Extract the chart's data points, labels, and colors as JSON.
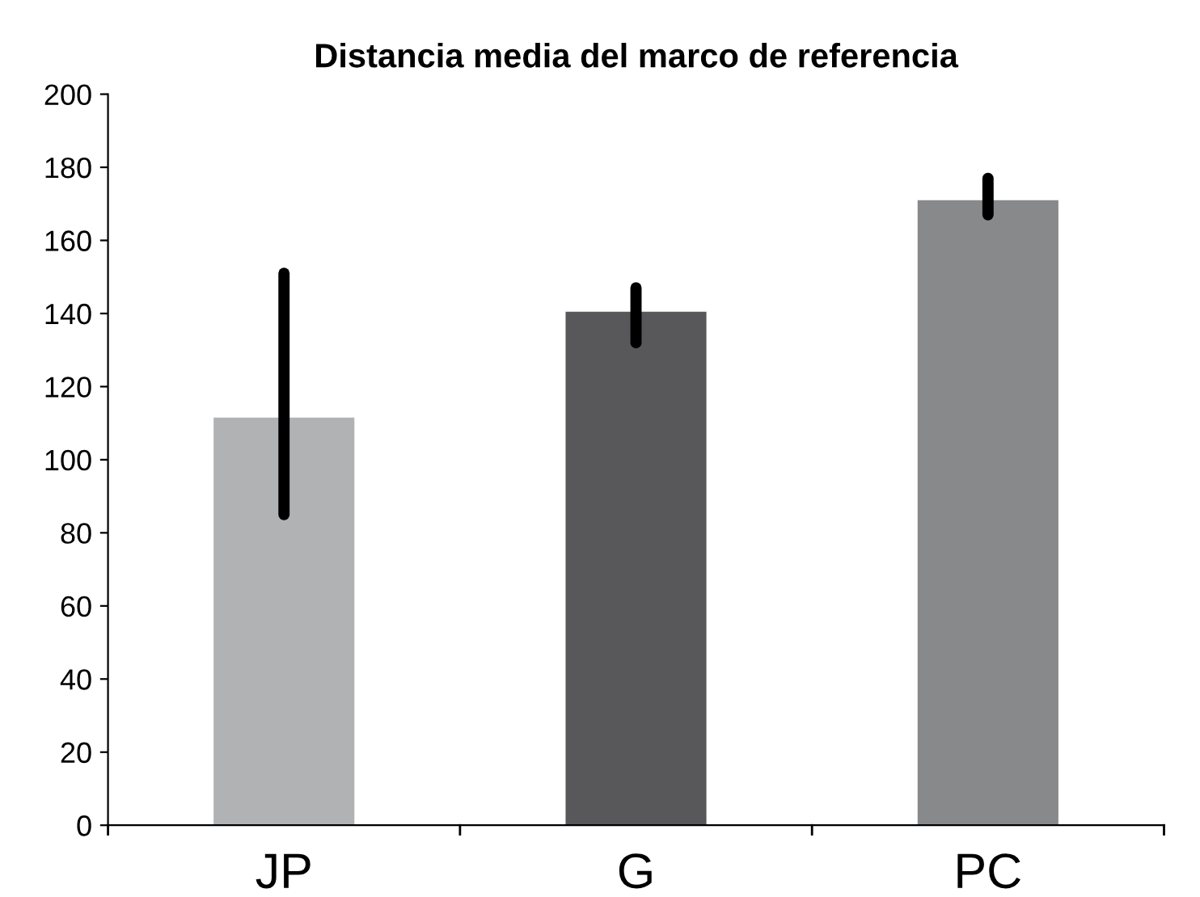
{
  "chart_data": {
    "type": "bar",
    "title": "Distancia media del marco de referencia",
    "categories": [
      "JP",
      "G",
      "PC"
    ],
    "values": [
      111.5,
      140.5,
      171
    ],
    "colors": [
      "#b1b2b4",
      "#58585a",
      "#88898b"
    ],
    "errors": [
      [
        85,
        151
      ],
      [
        132,
        147
      ],
      [
        167,
        177
      ]
    ],
    "ylim": [
      0,
      200
    ],
    "yticks": [
      0,
      20,
      40,
      60,
      80,
      100,
      120,
      140,
      160,
      180,
      200
    ],
    "grid": false,
    "legend": false
  }
}
